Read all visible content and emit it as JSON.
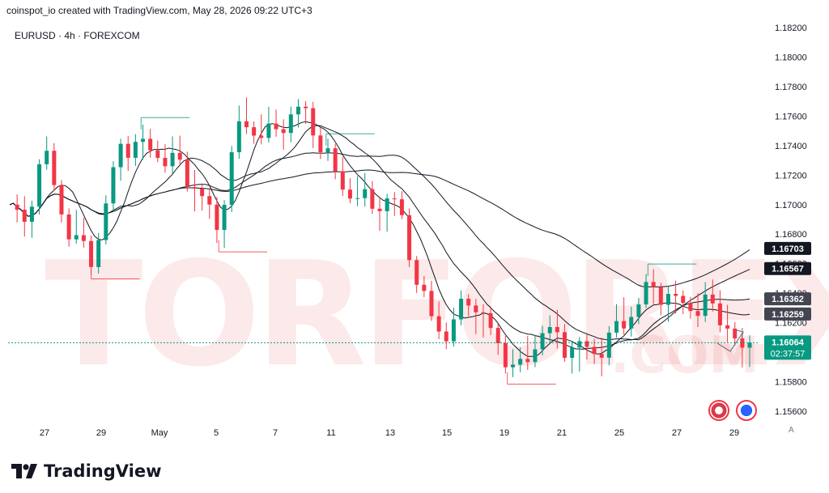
{
  "header": {
    "title": "coinspot_io created with TradingView.com, May 28, 2026 09:22 UTC+3"
  },
  "symbol": {
    "label": "EURUSD · 4h · FOREXCOM"
  },
  "watermark": {
    "text": "TORFOREX",
    "domain": ".COM"
  },
  "brand": {
    "name": "TradingView",
    "icon": "tradingview-logo-icon"
  },
  "controls": {
    "auto_label": "A"
  },
  "price_axis": {
    "ticks": [
      "1.18200",
      "1.18000",
      "1.17800",
      "1.17600",
      "1.17400",
      "1.17200",
      "1.17000",
      "1.16800",
      "1.16600",
      "1.16400",
      "1.16200",
      "1.16000",
      "1.15800",
      "1.15600"
    ],
    "badges": [
      {
        "name": "ma-badge-1",
        "value": "1.16703",
        "bg": "#131722",
        "fg": "#ffffff"
      },
      {
        "name": "ma-badge-2",
        "value": "1.16567",
        "bg": "#131722",
        "fg": "#ffffff"
      },
      {
        "name": "ma-badge-3",
        "value": "1.16362",
        "bg": "#434651",
        "fg": "#ffffff"
      },
      {
        "name": "ma-badge-4",
        "value": "1.16259",
        "bg": "#434651",
        "fg": "#ffffff"
      }
    ],
    "current": {
      "value": "1.16064",
      "countdown": "02:37:57",
      "bg": "#089981",
      "fg": "#ffffff"
    }
  },
  "time_axis": {
    "ticks": [
      "27",
      "29",
      "May",
      "5",
      "7",
      "11",
      "13",
      "15",
      "19",
      "21",
      "25",
      "27",
      "29"
    ]
  },
  "colors": {
    "up": "#089981",
    "down": "#f23645",
    "ma": "#131722",
    "level_up": "#089981",
    "level_down": "#f23645",
    "watermark": "#ec7878"
  },
  "chart_data": {
    "type": "candlestick",
    "title": "EURUSD · 4h · FOREXCOM",
    "ylim": [
      1.155,
      1.1825
    ],
    "x_ticks": [
      "27",
      "29",
      "May",
      "5",
      "7",
      "11",
      "13",
      "15",
      "19",
      "21",
      "25",
      "27",
      "29"
    ],
    "y_ticks": [
      1.182,
      1.18,
      1.178,
      1.176,
      1.174,
      1.172,
      1.17,
      1.168,
      1.166,
      1.164,
      1.162,
      1.16,
      1.158,
      1.156
    ],
    "anchor_points": [
      {
        "bar": 0,
        "close": 1.17
      },
      {
        "bar": 8,
        "close": 1.168
      },
      {
        "bar": 18,
        "close": 1.1735
      },
      {
        "bar": 30,
        "close": 1.169
      },
      {
        "bar": 45,
        "close": 1.1665
      },
      {
        "bar": 60,
        "close": 1.1735
      },
      {
        "bar": 78,
        "close": 1.174
      },
      {
        "bar": 92,
        "close": 1.173
      },
      {
        "bar": 112,
        "close": 1.168
      },
      {
        "bar": 125,
        "close": 1.176
      },
      {
        "bar": 140,
        "close": 1.175
      },
      {
        "bar": 158,
        "close": 1.176
      },
      {
        "bar": 178,
        "close": 1.172
      },
      {
        "bar": 195,
        "close": 1.17
      },
      {
        "bar": 210,
        "close": 1.1695
      },
      {
        "bar": 222,
        "close": 1.164
      },
      {
        "bar": 236,
        "close": 1.1615
      },
      {
        "bar": 248,
        "close": 1.1635
      },
      {
        "bar": 262,
        "close": 1.1605
      },
      {
        "bar": 275,
        "close": 1.159
      },
      {
        "bar": 288,
        "close": 1.1618
      },
      {
        "bar": 300,
        "close": 1.16
      },
      {
        "bar": 315,
        "close": 1.1598
      },
      {
        "bar": 328,
        "close": 1.162
      },
      {
        "bar": 345,
        "close": 1.164
      },
      {
        "bar": 362,
        "close": 1.163
      },
      {
        "bar": 378,
        "close": 1.1638
      },
      {
        "bar": 390,
        "close": 1.1615
      },
      {
        "bar": 396,
        "close": 1.1592
      },
      {
        "bar": 400,
        "close": 1.16064
      }
    ],
    "moving_averages": [
      {
        "period": 20,
        "last": 1.16259
      },
      {
        "period": 50,
        "last": 1.16362
      },
      {
        "period": 100,
        "last": 1.16567
      },
      {
        "period": 200,
        "last": 1.16703
      }
    ]
  }
}
